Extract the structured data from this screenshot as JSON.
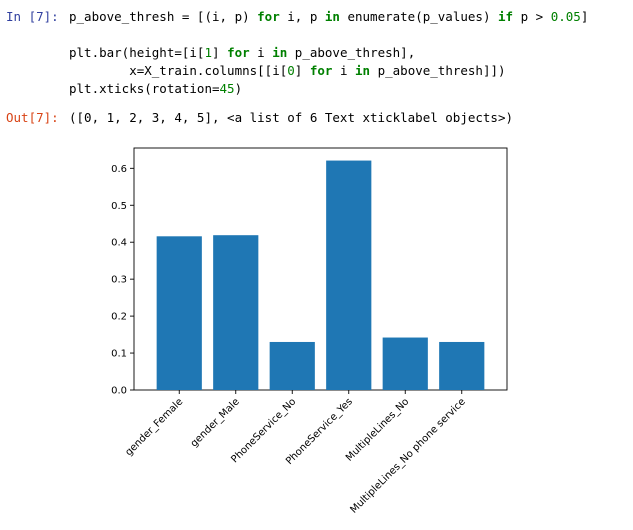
{
  "input_cell": {
    "prompt": "In [7]:",
    "lines": [
      [
        "p_above_thresh = [(i, p) ",
        "for",
        " i, p ",
        "in",
        " enumerate(p_values) ",
        "if",
        " p > ",
        "0.05",
        "]"
      ],
      [
        "plt.bar(height=[i[",
        "1",
        "] ",
        "for",
        " i ",
        "in",
        " p_above_thresh],"
      ],
      [
        "        x=X_train.columns[[i[",
        "0",
        "] ",
        "for",
        " i ",
        "in",
        " p_above_thresh]])"
      ],
      [
        "plt.xticks(rotation=",
        "45",
        ")"
      ]
    ]
  },
  "output_cell": {
    "prompt": "Out[7]:",
    "text": "([0, 1, 2, 3, 4, 5], <a list of 6 Text xticklabel objects>)"
  },
  "chart_data": {
    "type": "bar",
    "categories": [
      "gender_Female",
      "gender_Male",
      "PhoneService_No",
      "PhoneService_Yes",
      "MultipleLines_No",
      "MultipleLines_No phone service"
    ],
    "values": [
      0.416,
      0.419,
      0.13,
      0.621,
      0.142,
      0.13
    ],
    "title": "",
    "xlabel": "",
    "ylabel": "",
    "ylim": [
      0,
      0.655
    ],
    "yticks": [
      "0.0",
      "0.1",
      "0.2",
      "0.3",
      "0.4",
      "0.5",
      "0.6"
    ],
    "bar_color": "#1f77b4",
    "grid": false,
    "xtick_rotation": 45
  }
}
